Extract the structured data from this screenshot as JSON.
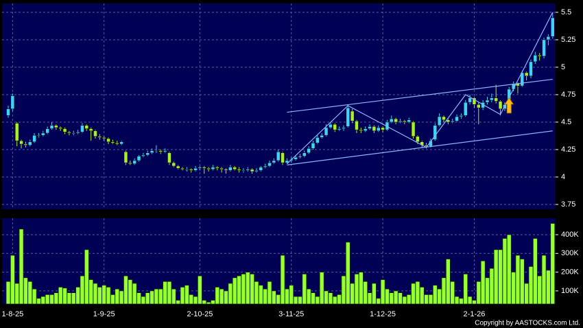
{
  "chart_data": {
    "type": "candlestick",
    "categories": [
      null,
      "1-8-25",
      null,
      null,
      null,
      null,
      null,
      null,
      null,
      null,
      null,
      null,
      null,
      null,
      null,
      null,
      null,
      null,
      null,
      null,
      null,
      null,
      "1-9-25",
      null,
      null,
      null,
      null,
      null,
      null,
      null,
      null,
      null,
      null,
      null,
      null,
      null,
      null,
      null,
      null,
      null,
      null,
      null,
      null,
      null,
      "2-10-25",
      null,
      null,
      null,
      null,
      null,
      null,
      null,
      null,
      null,
      null,
      null,
      null,
      null,
      null,
      null,
      null,
      null,
      null,
      null,
      null,
      "3-11-25",
      null,
      null,
      null,
      null,
      null,
      null,
      null,
      null,
      null,
      null,
      null,
      null,
      null,
      null,
      null,
      null,
      null,
      null,
      null,
      null,
      "1-12-25",
      null,
      null,
      null,
      null,
      null,
      null,
      null,
      null,
      null,
      null,
      null,
      null,
      null,
      null,
      null,
      null,
      null,
      null,
      null,
      null,
      "2-1-26",
      null,
      null,
      null,
      null,
      null,
      null,
      null,
      null,
      null,
      null,
      null,
      null,
      null,
      null,
      null,
      null,
      null,
      null
    ],
    "open": [
      4.56,
      4.62,
      4.49,
      4.33,
      4.3,
      4.29,
      4.32,
      4.38,
      4.38,
      4.4,
      4.44,
      4.47,
      4.45,
      4.44,
      4.41,
      4.4,
      4.4,
      4.41,
      4.47,
      4.44,
      4.42,
      4.37,
      4.36,
      4.35,
      4.32,
      4.31,
      4.3,
      4.23,
      4.13,
      4.12,
      4.15,
      4.19,
      4.2,
      4.22,
      4.24,
      4.24,
      4.23,
      4.22,
      4.13,
      4.1,
      4.08,
      4.07,
      4.07,
      4.06,
      4.08,
      4.09,
      4.08,
      4.07,
      4.09,
      4.08,
      4.07,
      4.06,
      4.09,
      4.07,
      4.06,
      4.06,
      4.07,
      4.05,
      4.06,
      4.09,
      4.1,
      4.13,
      4.15,
      4.22,
      4.13,
      4.15,
      4.16,
      4.18,
      4.19,
      4.22,
      4.26,
      4.31,
      4.36,
      4.38,
      4.45,
      4.48,
      4.43,
      4.44,
      4.46,
      4.6,
      4.51,
      4.43,
      4.42,
      4.44,
      4.46,
      4.42,
      4.45,
      4.43,
      4.5,
      4.53,
      4.5,
      4.51,
      4.5,
      4.5,
      4.37,
      4.32,
      4.29,
      4.28,
      4.34,
      4.47,
      4.55,
      4.52,
      4.5,
      4.51,
      4.55,
      4.56,
      4.68,
      4.72,
      4.66,
      4.63,
      4.68,
      4.7,
      4.72,
      4.69,
      4.62,
      4.66,
      4.8,
      4.85,
      4.83,
      4.95,
      4.92,
      5.05,
      5.11,
      5.1,
      5.25,
      5.28
    ],
    "high": [
      4.65,
      4.76,
      4.5,
      4.34,
      4.32,
      4.34,
      4.4,
      4.4,
      4.42,
      4.46,
      4.5,
      4.48,
      4.46,
      4.45,
      4.42,
      4.42,
      4.43,
      4.49,
      4.48,
      4.45,
      4.43,
      4.39,
      4.37,
      4.36,
      4.34,
      4.33,
      4.33,
      4.24,
      4.15,
      4.17,
      4.2,
      4.22,
      4.24,
      4.26,
      4.29,
      4.25,
      4.26,
      4.23,
      4.14,
      4.11,
      4.09,
      4.09,
      4.08,
      4.1,
      4.1,
      4.1,
      4.09,
      4.11,
      4.1,
      4.09,
      4.08,
      4.11,
      4.1,
      4.09,
      4.08,
      4.09,
      4.08,
      4.08,
      4.1,
      4.12,
      4.15,
      4.17,
      4.25,
      4.23,
      4.17,
      4.18,
      4.2,
      4.21,
      4.24,
      4.28,
      4.33,
      4.38,
      4.4,
      4.48,
      4.5,
      4.49,
      4.46,
      4.47,
      4.66,
      4.62,
      4.52,
      4.45,
      4.46,
      4.48,
      4.47,
      4.47,
      4.46,
      4.52,
      4.56,
      4.54,
      4.53,
      4.52,
      4.54,
      4.51,
      4.38,
      4.33,
      4.31,
      4.35,
      4.49,
      4.58,
      4.56,
      4.53,
      4.53,
      4.57,
      4.58,
      4.7,
      4.75,
      4.73,
      4.68,
      4.7,
      4.73,
      4.76,
      4.84,
      4.7,
      4.68,
      4.82,
      4.87,
      4.86,
      4.97,
      4.96,
      5.07,
      5.14,
      5.13,
      5.27,
      5.3,
      5.5
    ],
    "low": [
      4.54,
      4.6,
      4.28,
      4.26,
      4.27,
      4.28,
      4.31,
      4.36,
      4.37,
      4.39,
      4.43,
      4.43,
      4.42,
      4.39,
      4.38,
      4.38,
      4.39,
      4.4,
      4.42,
      4.33,
      4.35,
      4.34,
      4.33,
      4.3,
      4.3,
      4.29,
      4.29,
      4.11,
      4.11,
      4.11,
      4.14,
      4.18,
      4.19,
      4.21,
      4.22,
      4.21,
      4.22,
      4.11,
      4.09,
      4.07,
      4.06,
      4.05,
      4.04,
      4.05,
      4.06,
      4.03,
      4.05,
      4.06,
      4.06,
      4.04,
      4.03,
      4.05,
      4.06,
      4.04,
      4.04,
      4.05,
      4.03,
      4.04,
      4.05,
      4.08,
      4.09,
      4.12,
      4.14,
      4.11,
      4.12,
      4.13,
      4.15,
      4.17,
      4.18,
      4.21,
      4.25,
      4.3,
      4.35,
      4.37,
      4.44,
      4.41,
      4.42,
      4.42,
      4.45,
      4.49,
      4.4,
      4.4,
      4.41,
      4.43,
      4.4,
      4.41,
      4.41,
      4.42,
      4.49,
      4.48,
      4.49,
      4.48,
      4.49,
      4.35,
      4.3,
      4.27,
      4.26,
      4.27,
      4.33,
      4.46,
      4.5,
      4.48,
      4.49,
      4.5,
      4.53,
      4.55,
      4.66,
      4.63,
      4.48,
      4.61,
      4.66,
      4.68,
      4.67,
      4.56,
      4.6,
      4.64,
      4.78,
      4.76,
      4.82,
      4.88,
      4.9,
      5.03,
      5.06,
      5.08,
      5.2,
      5.26
    ],
    "close": [
      4.62,
      4.74,
      4.33,
      4.3,
      4.29,
      4.32,
      4.38,
      4.38,
      4.4,
      4.44,
      4.47,
      4.45,
      4.44,
      4.41,
      4.4,
      4.4,
      4.41,
      4.47,
      4.44,
      4.42,
      4.37,
      4.36,
      4.35,
      4.32,
      4.31,
      4.3,
      4.32,
      4.13,
      4.12,
      4.15,
      4.19,
      4.2,
      4.22,
      4.24,
      4.24,
      4.23,
      4.24,
      4.13,
      4.1,
      4.08,
      4.07,
      4.07,
      4.06,
      4.08,
      4.09,
      4.08,
      4.07,
      4.09,
      4.08,
      4.07,
      4.06,
      4.09,
      4.07,
      4.06,
      4.06,
      4.07,
      4.05,
      4.06,
      4.09,
      4.1,
      4.13,
      4.15,
      4.23,
      4.13,
      4.15,
      4.16,
      4.18,
      4.19,
      4.22,
      4.26,
      4.31,
      4.36,
      4.38,
      4.45,
      4.48,
      4.43,
      4.44,
      4.45,
      4.63,
      4.51,
      4.43,
      4.42,
      4.44,
      4.46,
      4.42,
      4.45,
      4.43,
      4.5,
      4.53,
      4.5,
      4.51,
      4.5,
      4.52,
      4.37,
      4.32,
      4.29,
      4.28,
      4.33,
      4.47,
      4.55,
      4.52,
      4.5,
      4.51,
      4.55,
      4.56,
      4.68,
      4.72,
      4.66,
      4.63,
      4.68,
      4.7,
      4.72,
      4.69,
      4.62,
      4.66,
      4.8,
      4.85,
      4.83,
      4.95,
      4.92,
      5.05,
      5.11,
      5.1,
      5.25,
      5.28,
      5.45
    ],
    "up_color": "#3fd2ff",
    "down_color": "#a6f02c",
    "ylim": [
      3.706,
      5.581
    ],
    "yticks": [
      3.75,
      4,
      4.25,
      4.5,
      4.75,
      5,
      5.25,
      5.5
    ],
    "grid": true,
    "volume": {
      "values": [
        150000,
        290000,
        140000,
        430000,
        170000,
        150000,
        110000,
        60000,
        70000,
        80000,
        80000,
        90000,
        120000,
        115000,
        90000,
        90000,
        120000,
        180000,
        320000,
        160000,
        140000,
        120000,
        130000,
        120000,
        80000,
        110000,
        100000,
        180000,
        160000,
        140000,
        90000,
        70000,
        90000,
        100000,
        110000,
        110000,
        150000,
        150000,
        110000,
        50000,
        120000,
        130000,
        80000,
        70000,
        180000,
        50000,
        40000,
        50000,
        120000,
        110000,
        100000,
        140000,
        170000,
        180000,
        190000,
        200000,
        190000,
        150000,
        130000,
        110000,
        150000,
        100000,
        80000,
        290000,
        110000,
        130000,
        70000,
        70000,
        190000,
        110000,
        90000,
        70000,
        200000,
        100000,
        90000,
        70000,
        80000,
        180000,
        360000,
        140000,
        190000,
        200000,
        150000,
        90000,
        140000,
        60000,
        160000,
        110000,
        90000,
        100000,
        90000,
        70000,
        80000,
        140000,
        150000,
        120000,
        80000,
        80000,
        130000,
        110000,
        170000,
        270000,
        150000,
        70000,
        60000,
        190000,
        70000,
        50000,
        150000,
        260000,
        170000,
        220000,
        320000,
        320000,
        380000,
        400000,
        200000,
        290000,
        270000,
        140000,
        230000,
        380000,
        180000,
        290000,
        210000,
        460000
      ],
      "color": "#99ff33",
      "ylim": [
        30000,
        488000
      ],
      "yticks": [
        {
          "value": 100000,
          "label": "100K"
        },
        {
          "value": 200000,
          "label": "200K"
        },
        {
          "value": 300000,
          "label": "300K"
        },
        {
          "value": 400000,
          "label": "400K"
        }
      ]
    },
    "trend_lines": [
      {
        "x": [
          64,
          125
        ],
        "y": [
          4.59,
          4.89
        ]
      },
      {
        "x": [
          64,
          125
        ],
        "y": [
          4.11,
          4.42
        ]
      },
      {
        "x": [
          64,
          78,
          96,
          105,
          113,
          125
        ],
        "y": [
          4.12,
          4.65,
          4.27,
          4.75,
          4.57,
          5.5
        ]
      }
    ],
    "trend_color": "#8cb4ff",
    "signal_marker": {
      "index": 115,
      "value": 4.72,
      "color": "#ffc020"
    }
  },
  "copyright": "Copyright by AASTOCKS.com Ltd."
}
